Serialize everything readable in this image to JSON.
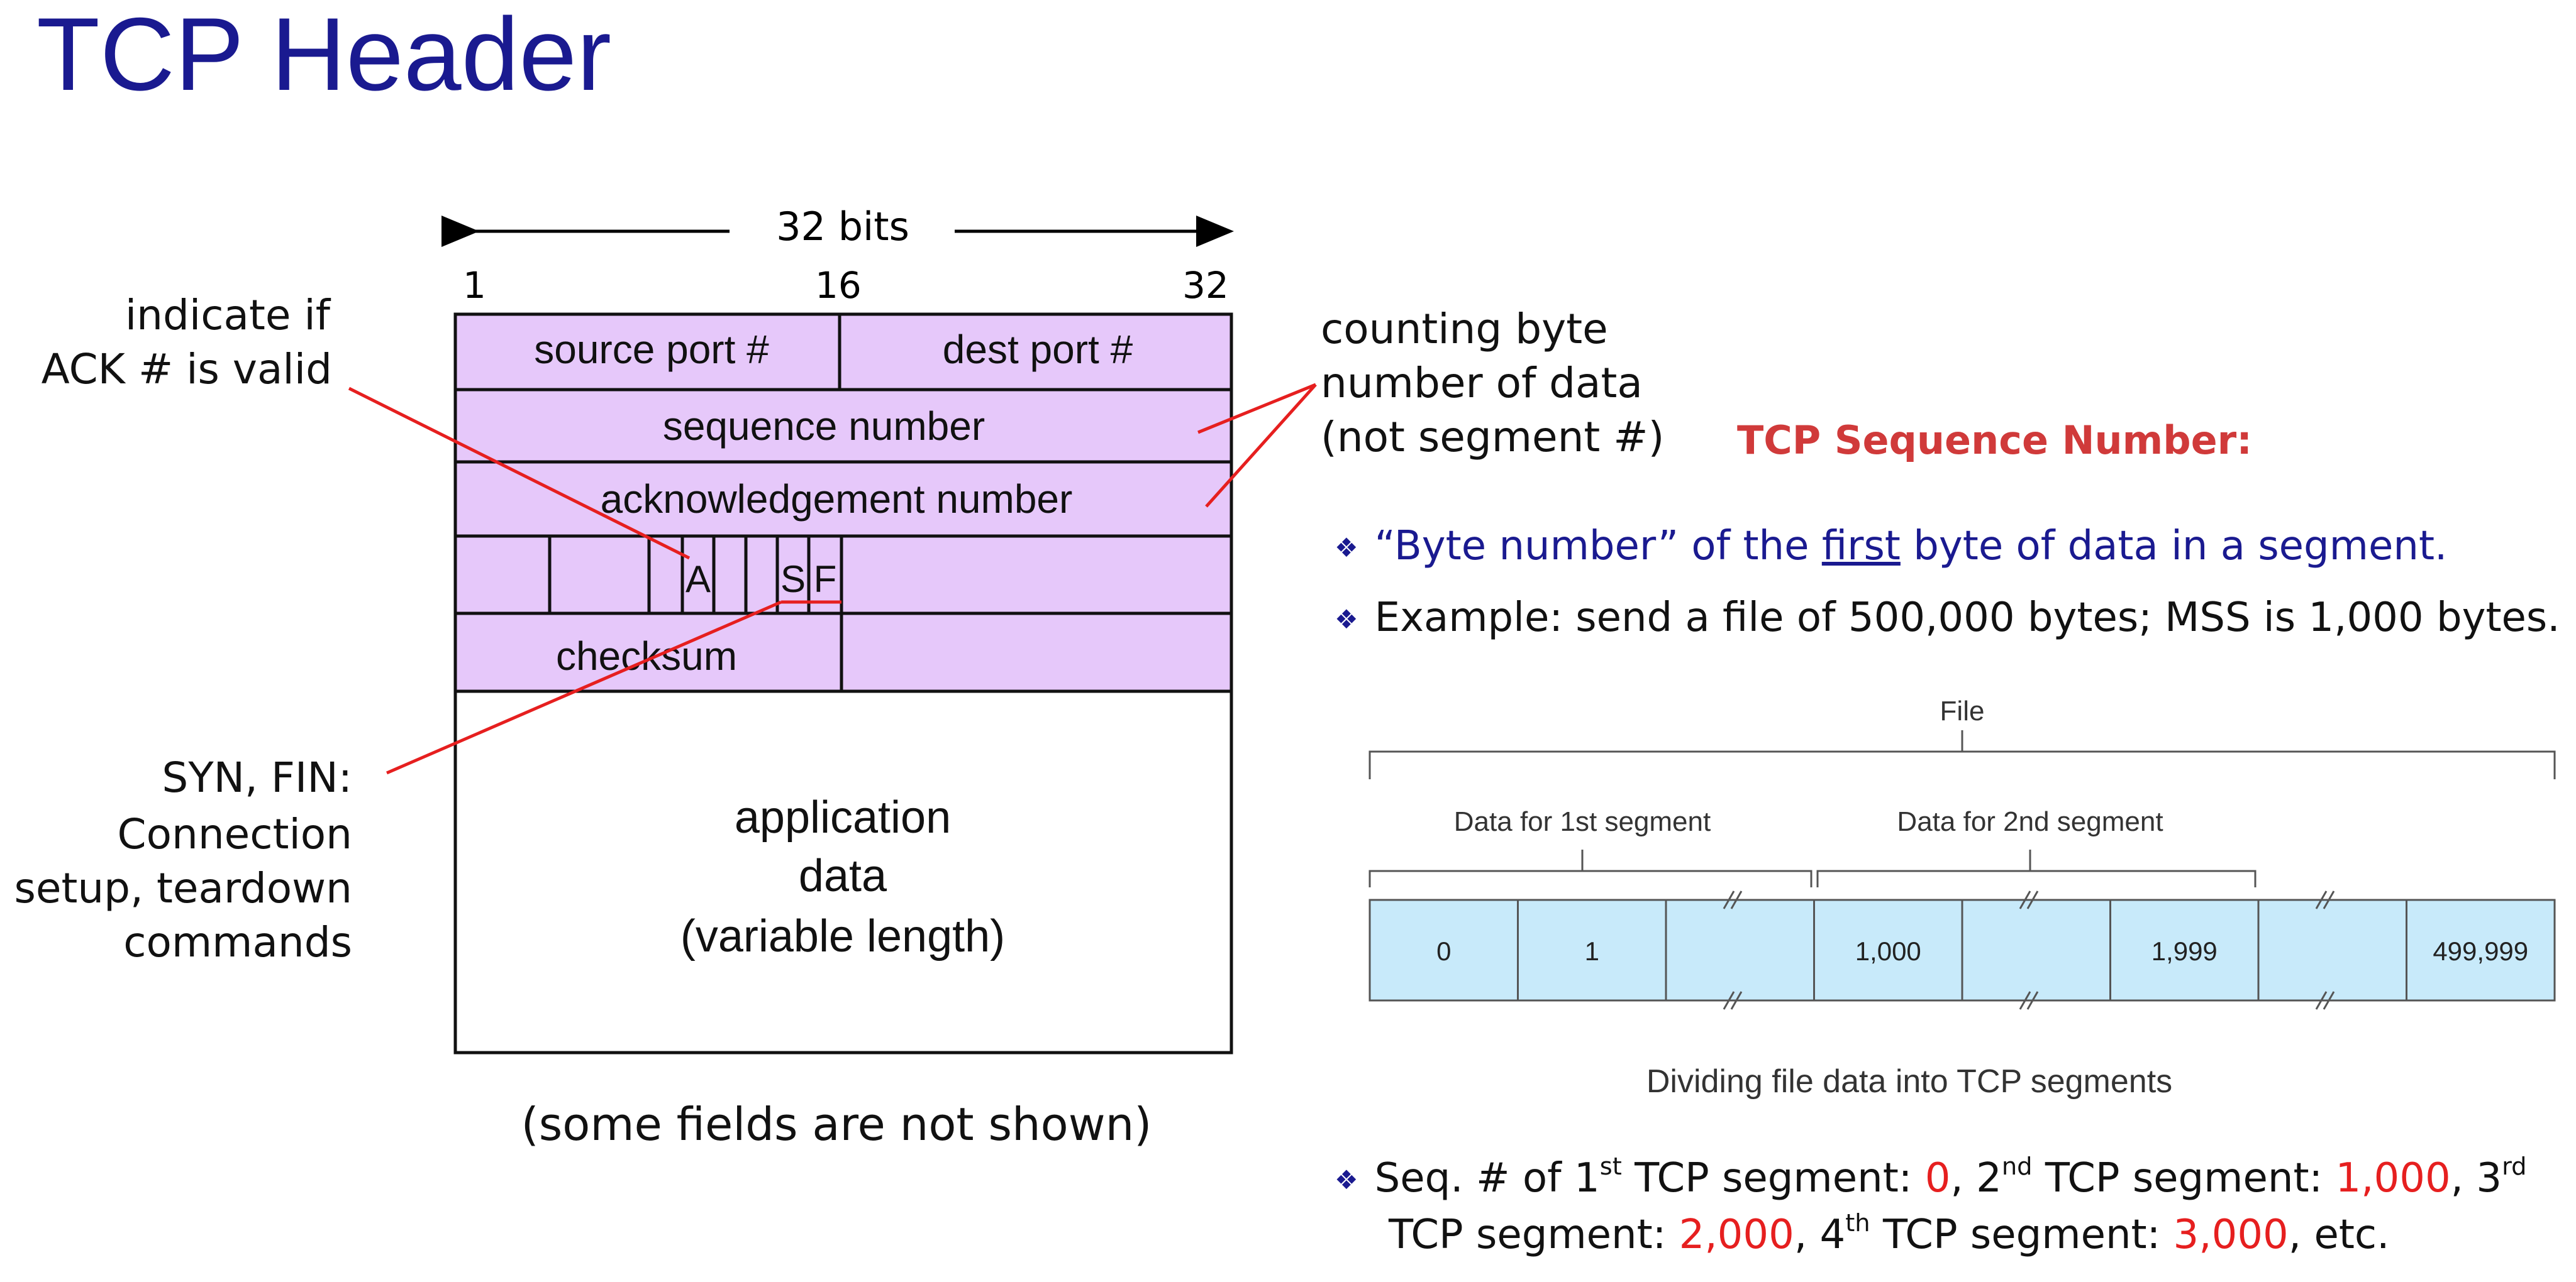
{
  "slide": {
    "title": "TCP Header",
    "header_diagram": {
      "bits_label": "32 bits",
      "bit_1": "1",
      "bit_16": "16",
      "bit_32": "32",
      "source_port": "source port #",
      "dest_port": "dest port #",
      "sequence_number": "sequence number",
      "ack_number": "acknowledgement number",
      "flag_a": "A",
      "flag_s": "S",
      "flag_f": "F",
      "checksum": "checksum",
      "app_data_1": "application",
      "app_data_2": "data",
      "app_data_3": "(variable length)",
      "footnote": "(some fields are not shown)",
      "box_fill": "#e6c8fa"
    },
    "annotations": {
      "ack_1": "indicate if",
      "ack_2": "ACK # is valid",
      "syn_1": "SYN, FIN:",
      "syn_2": "Connection",
      "syn_3": "setup, teardown",
      "syn_4": "commands",
      "count_1": "counting byte",
      "count_2": "number of data",
      "count_3": "(not segment #)"
    },
    "seq_heading": "TCP Sequence Number:",
    "bullets": {
      "b1_open": "“Byte number” of the ",
      "b1_under": "first",
      "b1_close": " byte of data in a segment.",
      "b2": "Example: send a file of 500,000 bytes; MSS is 1,000 bytes.",
      "b3_a": "Seq. # of 1",
      "b3_sup1": "st",
      "b3_b": " TCP segment: ",
      "b3_v1": "0",
      "b3_c": ", 2",
      "b3_sup2": "nd",
      "b3_d": " TCP segment: ",
      "b3_v2": "1,000",
      "b3_e": ", 3",
      "b3_sup3": "rd",
      "b4_a": "TCP segment: ",
      "b4_v3": "2,000",
      "b4_b": ", 4",
      "b4_sup4": "th",
      "b4_c": " TCP segment: ",
      "b4_v4": "3,000",
      "b4_d": ", etc."
    },
    "file_figure": {
      "file_label": "File",
      "seg1_label": "Data for 1st segment",
      "seg2_label": "Data for 2nd segment",
      "cells": [
        "0",
        "1",
        "",
        "1,000",
        "",
        "1,999",
        "",
        "499,999"
      ],
      "caption": "Dividing file data into TCP segments",
      "cell_fill": "#c8eafa"
    }
  }
}
